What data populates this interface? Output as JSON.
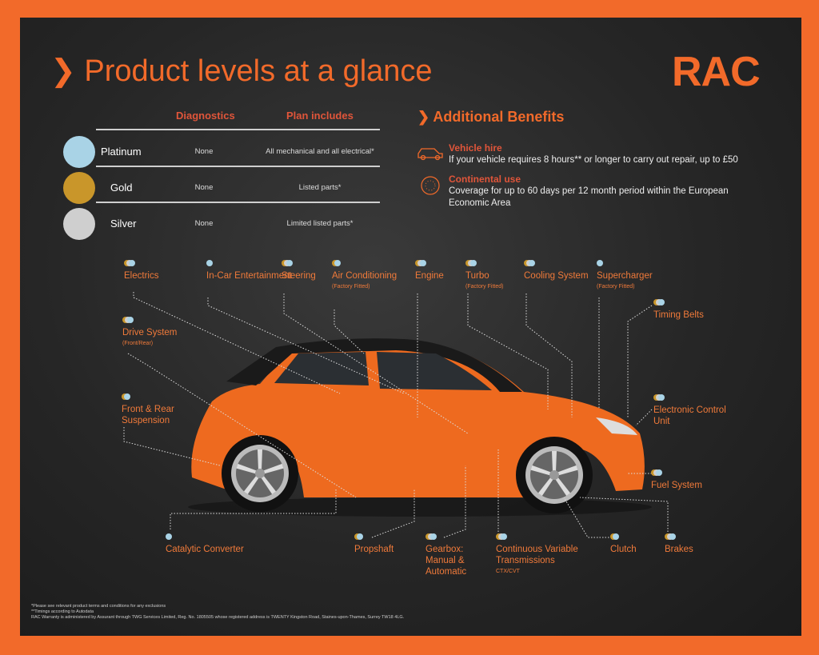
{
  "title": "Product levels at a glance",
  "brand": "RAC",
  "colors": {
    "accent": "#f26a2a",
    "platinum": "#a9d3e6",
    "gold": "#c9962a",
    "silver": "#cfcfcf"
  },
  "table": {
    "headers": [
      "Diagnostics",
      "Plan includes"
    ],
    "rows": [
      {
        "level": "Platinum",
        "color": "#a9d3e6",
        "diagnostics": "None",
        "includes": "All mechanical and all electrical*"
      },
      {
        "level": "Gold",
        "color": "#c9962a",
        "diagnostics": "None",
        "includes": "Listed parts*"
      },
      {
        "level": "Silver",
        "color": "#cfcfcf",
        "diagnostics": "None",
        "includes": "Limited listed parts*"
      }
    ]
  },
  "benefits": {
    "title": "Additional Benefits",
    "items": [
      {
        "icon": "car-icon",
        "title": "Vehicle hire",
        "text": "If your vehicle requires 8 hours** or longer to carry out repair, up to £50"
      },
      {
        "icon": "eu-stars-icon",
        "title": "Continental use",
        "text": "Coverage for up to 60 days per 12 month period within the European Economic Area"
      }
    ]
  },
  "components": [
    {
      "label": "Electrics",
      "note": "",
      "levels": [
        "gold",
        "silver",
        "platinum"
      ]
    },
    {
      "label": "In-Car Entertainment",
      "note": "",
      "levels": [
        "platinum"
      ]
    },
    {
      "label": "Steering",
      "note": "",
      "levels": [
        "gold",
        "silver",
        "platinum"
      ]
    },
    {
      "label": "Air Conditioning",
      "note": "(Factory Fitted)",
      "levels": [
        "gold",
        "platinum"
      ]
    },
    {
      "label": "Engine",
      "note": "",
      "levels": [
        "gold",
        "silver",
        "platinum"
      ]
    },
    {
      "label": "Turbo",
      "note": "(Factory Fitted)",
      "levels": [
        "gold",
        "silver",
        "platinum"
      ]
    },
    {
      "label": "Cooling System",
      "note": "",
      "levels": [
        "gold",
        "silver",
        "platinum"
      ]
    },
    {
      "label": "Supercharger",
      "note": "(Factory Fitted)",
      "levels": [
        "platinum"
      ]
    },
    {
      "label": "Timing Belts",
      "note": "",
      "levels": [
        "gold",
        "silver",
        "platinum"
      ]
    },
    {
      "label": "Drive System",
      "note": "(Front/Rear)",
      "levels": [
        "gold",
        "silver",
        "platinum"
      ]
    },
    {
      "label": "Front & Rear Suspension",
      "note": "",
      "levels": [
        "gold",
        "platinum"
      ]
    },
    {
      "label": "Electronic Control Unit",
      "note": "",
      "levels": [
        "gold",
        "silver",
        "platinum"
      ]
    },
    {
      "label": "Fuel System",
      "note": "",
      "levels": [
        "gold",
        "silver",
        "platinum"
      ]
    },
    {
      "label": "Catalytic Converter",
      "note": "",
      "levels": [
        "platinum"
      ]
    },
    {
      "label": "Propshaft",
      "note": "",
      "levels": [
        "gold",
        "platinum"
      ]
    },
    {
      "label": "Gearbox: Manual & Automatic",
      "note": "",
      "levels": [
        "gold",
        "silver",
        "platinum"
      ]
    },
    {
      "label": "Continuous Variable Transmissions",
      "note": "CTX/CVT",
      "levels": [
        "gold",
        "silver",
        "platinum"
      ]
    },
    {
      "label": "Clutch",
      "note": "",
      "levels": [
        "gold",
        "platinum"
      ]
    },
    {
      "label": "Brakes",
      "note": "",
      "levels": [
        "gold",
        "silver",
        "platinum"
      ]
    }
  ],
  "footnotes": [
    "*Please see relevant product terms and conditions for any exclusions",
    "**Timings according to Autodata",
    "RAC Warranty is administered by Assurant through TWG Services Limited, Reg. No. 1805505 whose registered address is TWENTY Kingston Road, Staines-upon-Thames, Surrey TW18 4LG."
  ]
}
